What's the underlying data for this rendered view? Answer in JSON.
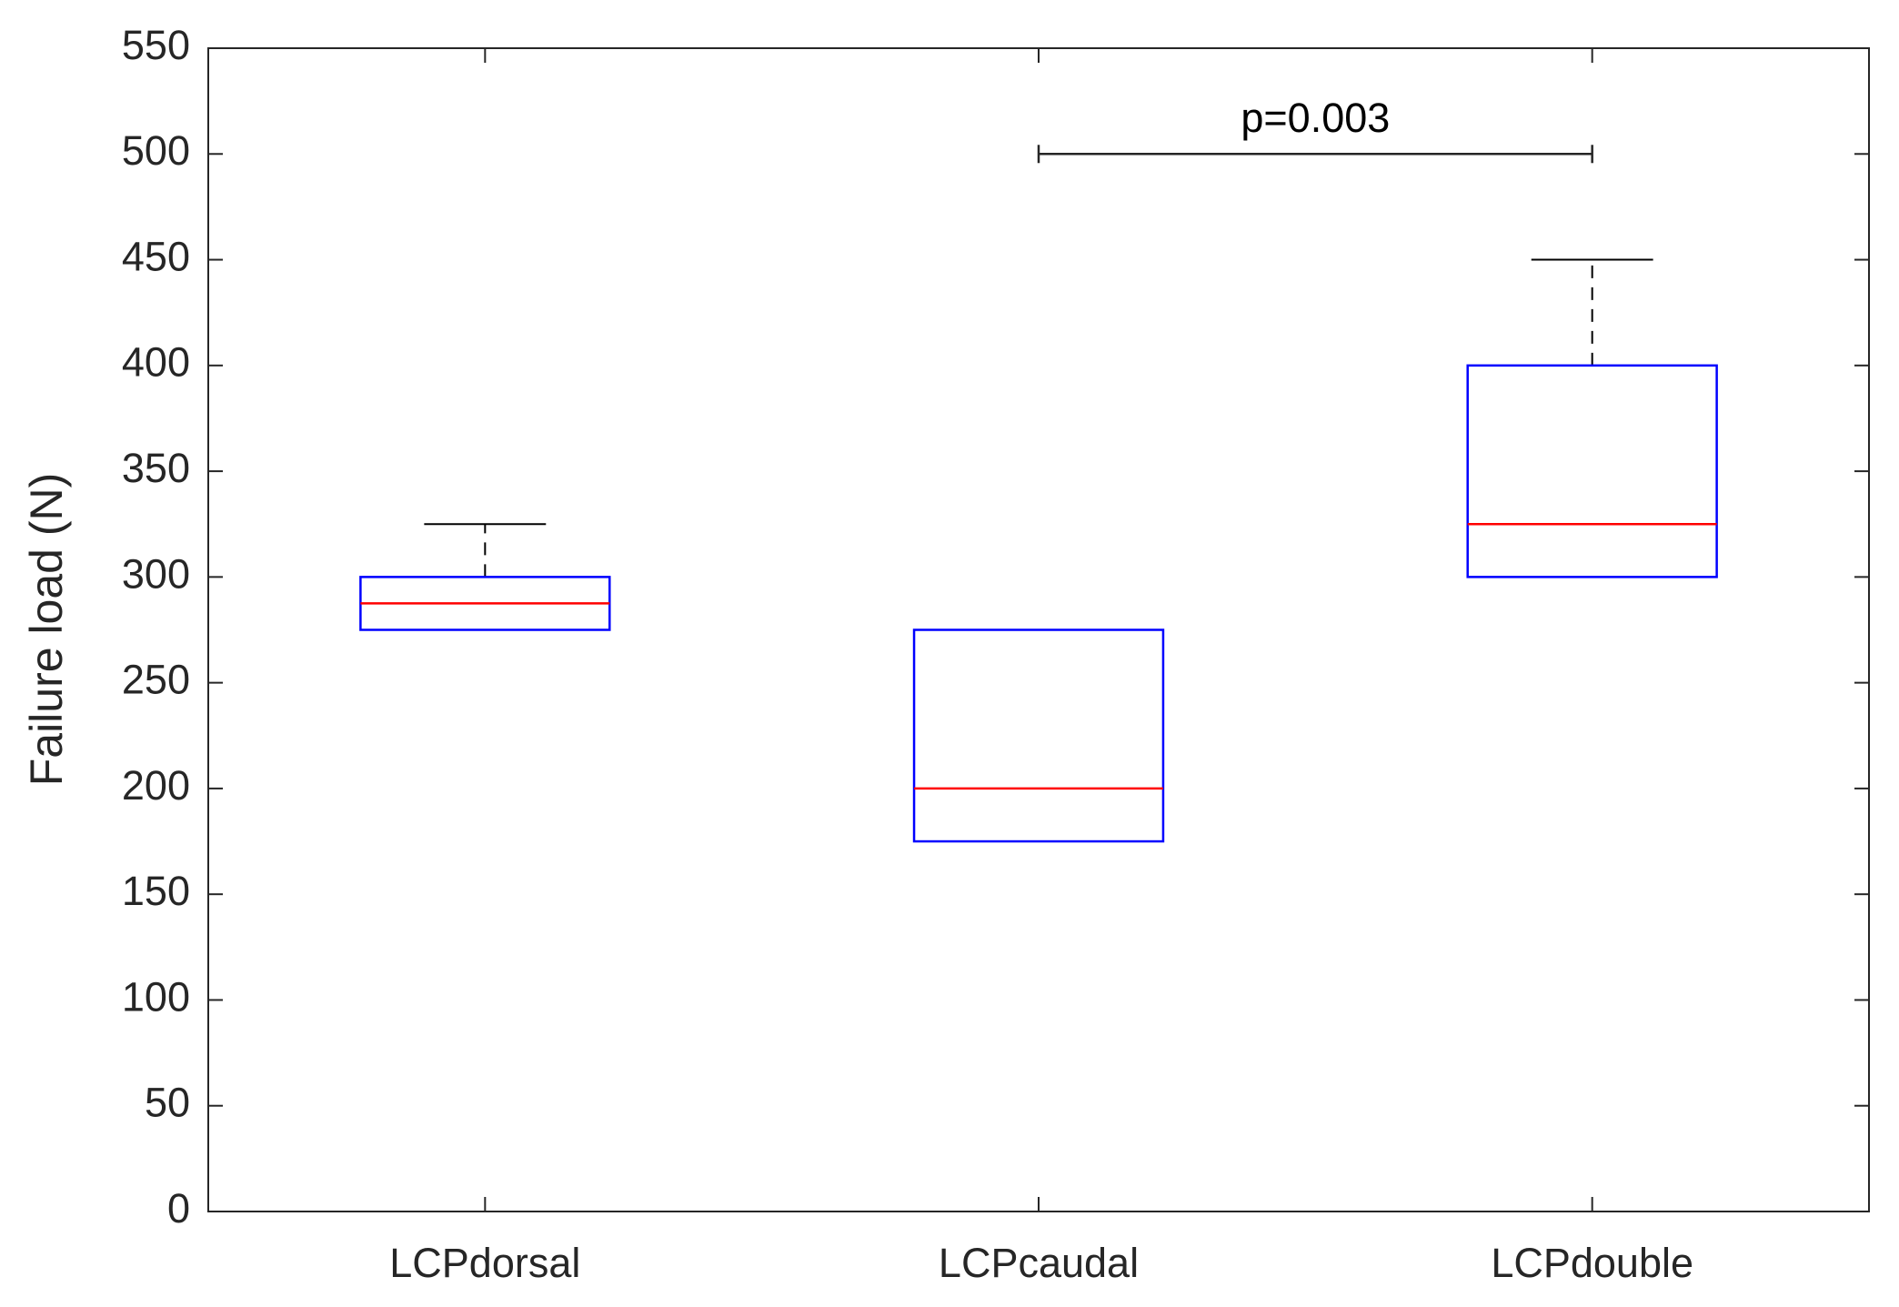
{
  "chart_data": {
    "type": "box",
    "ylabel": "Failure load (N)",
    "categories": [
      "LCPdorsal",
      "LCPcaudal",
      "LCPdouble"
    ],
    "boxes": [
      {
        "min": 275,
        "q1": 275,
        "median": 287.5,
        "q3": 300,
        "max": 325
      },
      {
        "min": 175,
        "q1": 175,
        "median": 200,
        "q3": 275,
        "max": 275
      },
      {
        "min": 300,
        "q1": 300,
        "median": 325,
        "q3": 400,
        "max": 450
      }
    ],
    "box_color": "#0000ff",
    "median_color": "#ff0000",
    "whisker_color": "#000000",
    "ylim": [
      0,
      550
    ],
    "yticks": [
      0,
      50,
      100,
      150,
      200,
      250,
      300,
      350,
      400,
      450,
      500,
      550
    ],
    "grid": false,
    "annotation": {
      "text": "p=0.003",
      "from": "LCPcaudal",
      "to": "LCPdouble",
      "y": 500
    }
  }
}
